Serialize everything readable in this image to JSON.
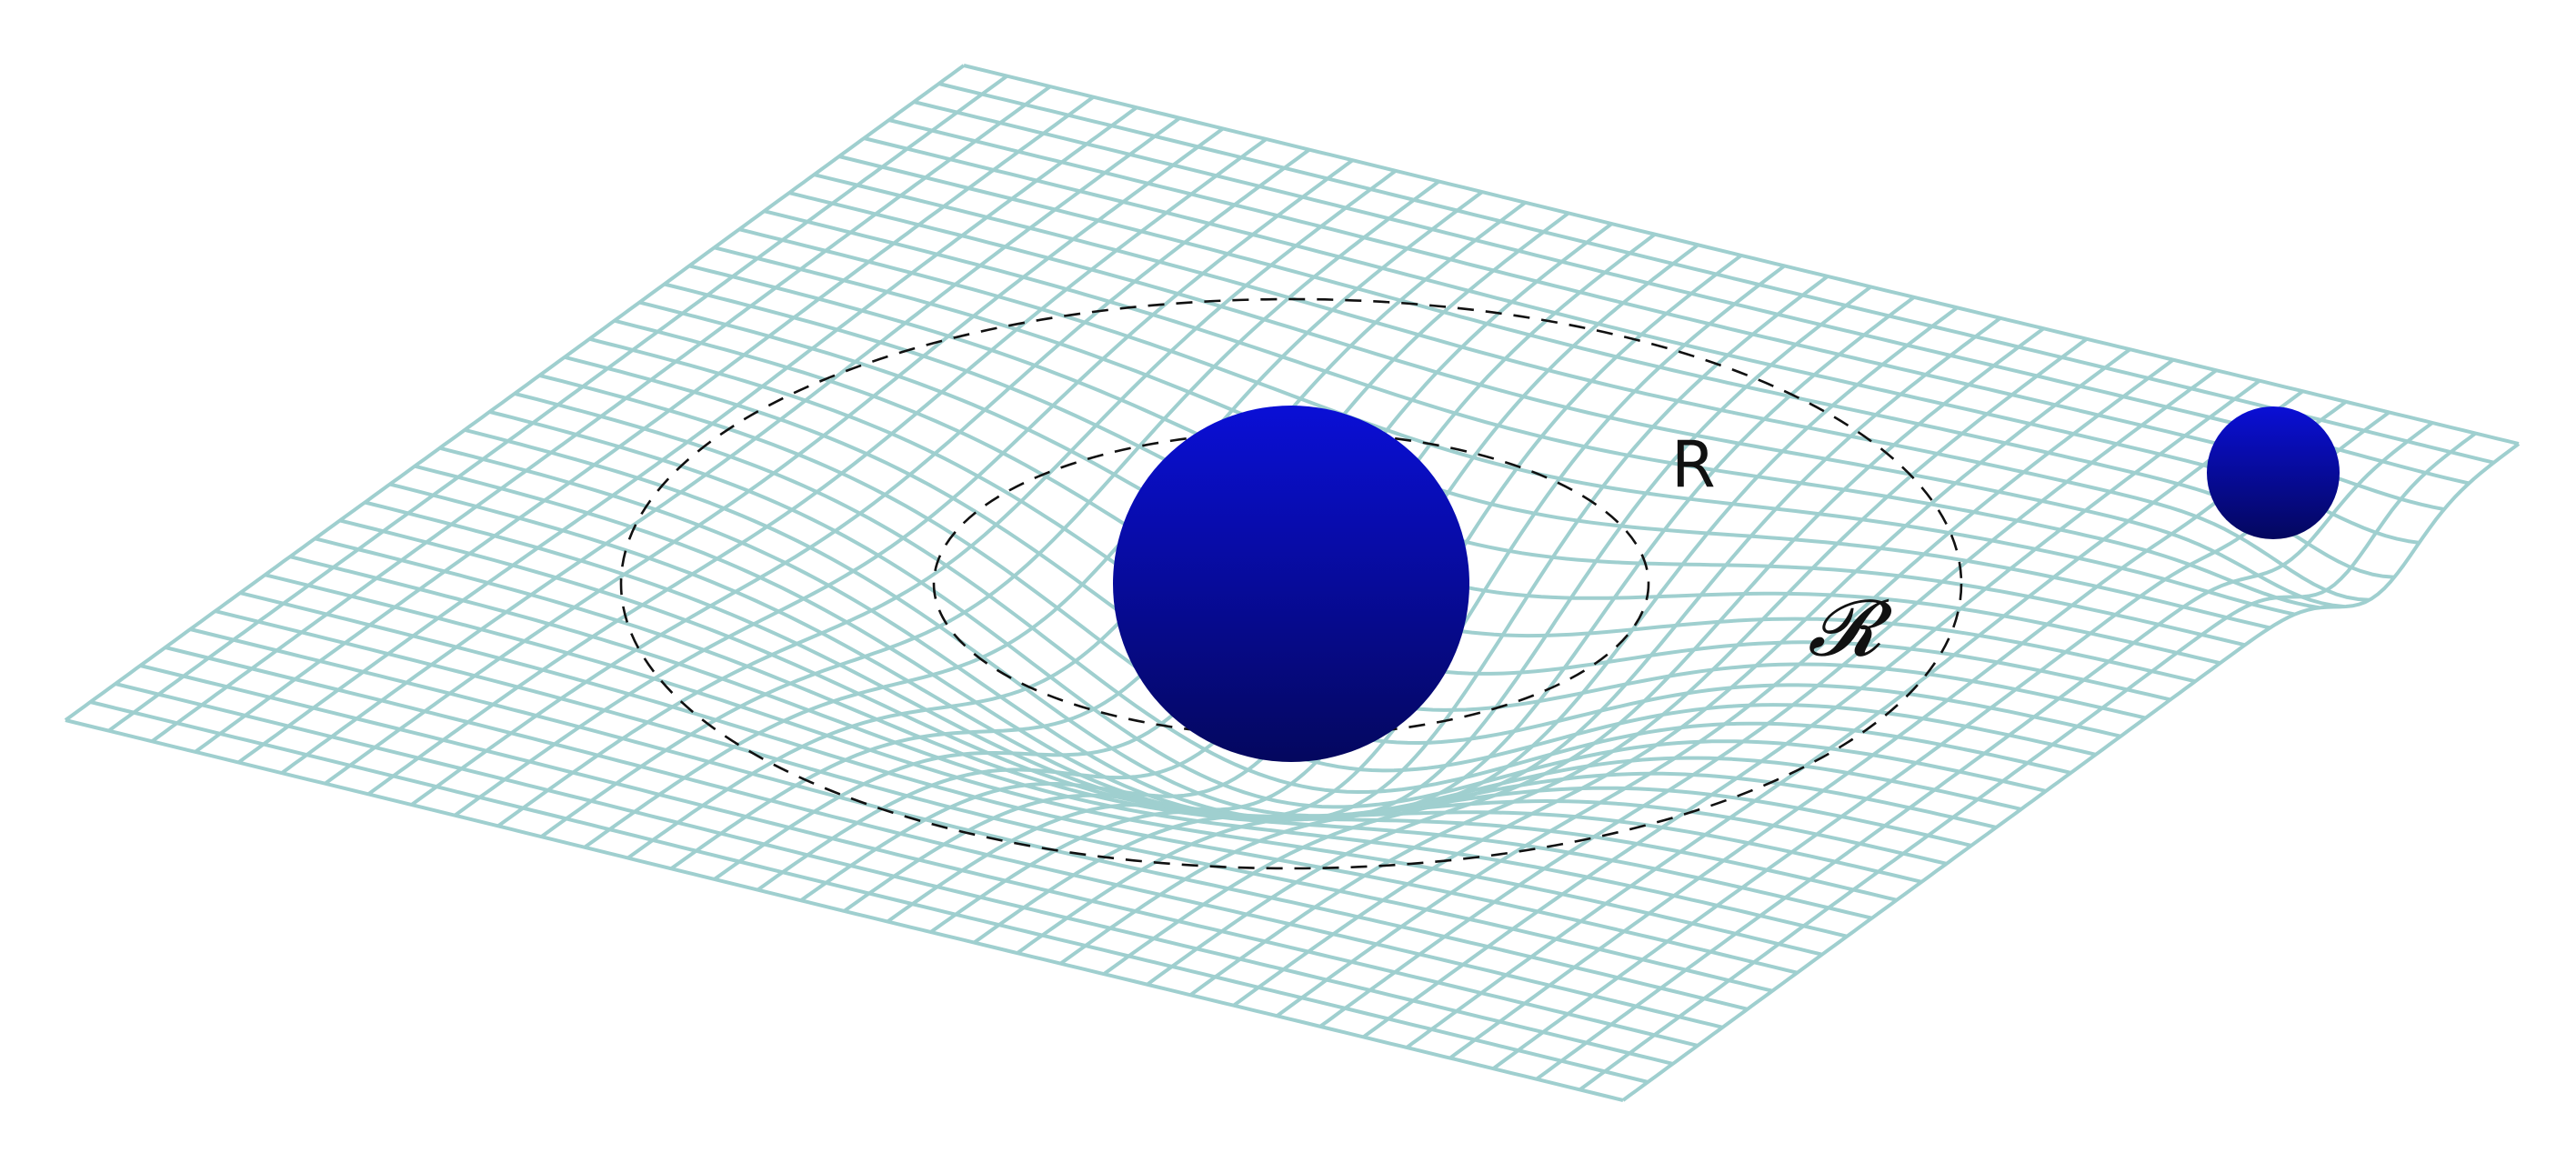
{
  "diagram": {
    "labels": {
      "inner_radius": "R",
      "outer_radius": "𝓡"
    },
    "colors": {
      "grid": "#9fcfcf",
      "background": "#ffffff",
      "sphere_light": "#0a0fd6",
      "sphere_dark": "#04075e",
      "orbit_line": "#111111"
    },
    "objects": [
      {
        "name": "central-mass",
        "kind": "large sphere"
      },
      {
        "name": "orbiting-body",
        "kind": "small sphere"
      }
    ],
    "orbits": [
      {
        "name": "inner-orbit",
        "style": "dashed"
      },
      {
        "name": "outer-orbit",
        "style": "dashed"
      }
    ]
  }
}
